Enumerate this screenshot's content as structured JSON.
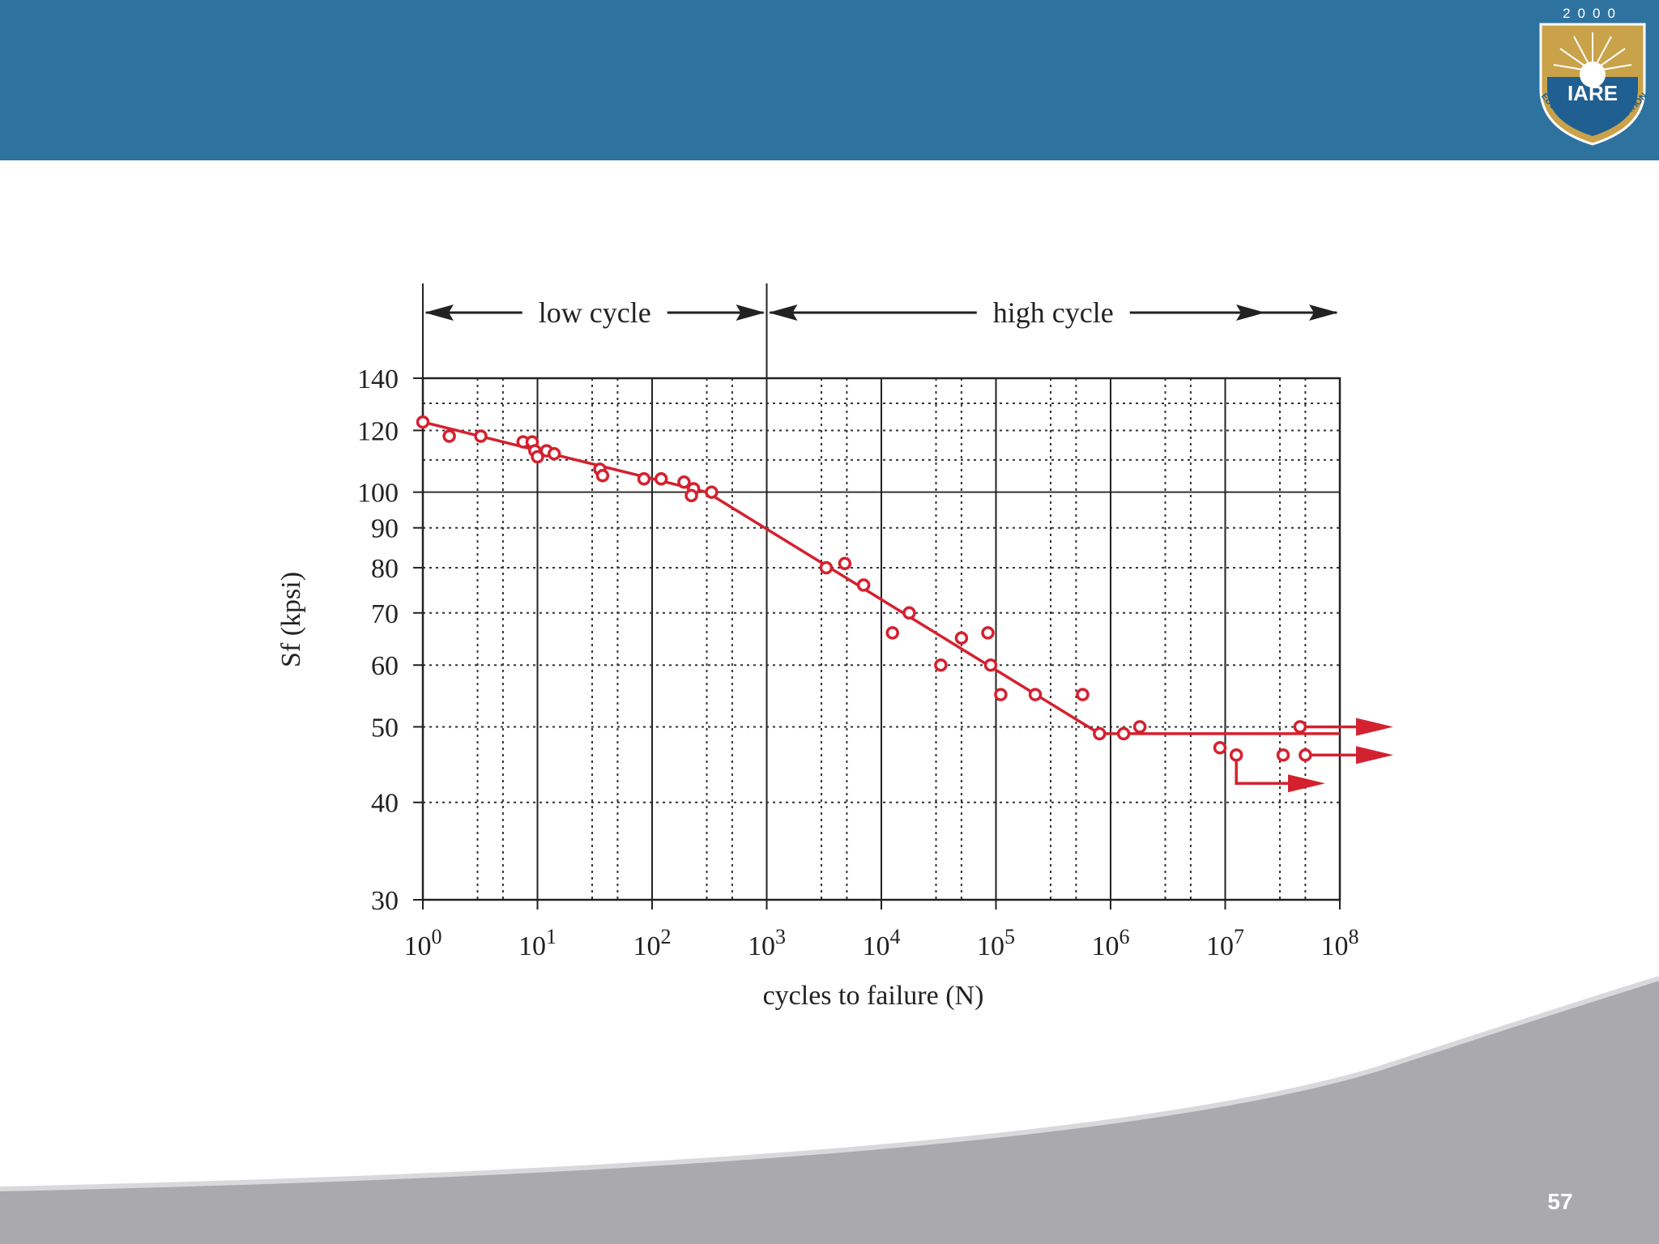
{
  "slide": {
    "number": "57"
  },
  "logo": {
    "year": "2000",
    "name": "IARE",
    "motto": "EDUCATION FOR LIBERATION"
  },
  "colors": {
    "header": "#2e72a0",
    "data": "#d4212f",
    "footer": "#a9a9ae"
  },
  "chart_data": {
    "type": "scatter",
    "x_scale": "log",
    "y_scale": "log",
    "xlim": [
      1,
      100000000
    ],
    "ylim": [
      30,
      140
    ],
    "grid": true,
    "xlabel": "cycles to failure (N)",
    "ylabel": "Sf (kpsi)",
    "x_ticks": [
      {
        "value": 1,
        "base": "10",
        "exp": "0"
      },
      {
        "value": 10,
        "base": "10",
        "exp": "1"
      },
      {
        "value": 100,
        "base": "10",
        "exp": "2"
      },
      {
        "value": 1000,
        "base": "10",
        "exp": "3"
      },
      {
        "value": 10000,
        "base": "10",
        "exp": "4"
      },
      {
        "value": 100000,
        "base": "10",
        "exp": "5"
      },
      {
        "value": 1000000,
        "base": "10",
        "exp": "6"
      },
      {
        "value": 10000000,
        "base": "10",
        "exp": "7"
      },
      {
        "value": 100000000,
        "base": "10",
        "exp": "8"
      }
    ],
    "y_ticks": [
      30,
      40,
      50,
      60,
      70,
      80,
      90,
      100,
      120,
      140
    ],
    "regions": [
      {
        "label": "low cycle",
        "from": 1,
        "to": 1000
      },
      {
        "label": "high cycle",
        "from": 1000,
        "to": 100000000
      }
    ],
    "fit_line": [
      {
        "x": 1,
        "y": 123
      },
      {
        "x": 300,
        "y": 100
      },
      {
        "x": 800000,
        "y": 49
      },
      {
        "x": 100000000,
        "y": 49
      }
    ],
    "points": [
      {
        "x": 1,
        "y": 123
      },
      {
        "x": 1.7,
        "y": 118
      },
      {
        "x": 3.2,
        "y": 118
      },
      {
        "x": 7.5,
        "y": 116
      },
      {
        "x": 9,
        "y": 116
      },
      {
        "x": 9.5,
        "y": 113
      },
      {
        "x": 10,
        "y": 111
      },
      {
        "x": 12,
        "y": 113
      },
      {
        "x": 14,
        "y": 112
      },
      {
        "x": 35,
        "y": 107
      },
      {
        "x": 37,
        "y": 105
      },
      {
        "x": 85,
        "y": 104
      },
      {
        "x": 120,
        "y": 104
      },
      {
        "x": 190,
        "y": 103
      },
      {
        "x": 230,
        "y": 101
      },
      {
        "x": 220,
        "y": 99
      },
      {
        "x": 330,
        "y": 100
      },
      {
        "x": 3300,
        "y": 80
      },
      {
        "x": 4800,
        "y": 81
      },
      {
        "x": 7000,
        "y": 76
      },
      {
        "x": 12500,
        "y": 66
      },
      {
        "x": 17500,
        "y": 70
      },
      {
        "x": 33000,
        "y": 60
      },
      {
        "x": 50000,
        "y": 65
      },
      {
        "x": 85000,
        "y": 66
      },
      {
        "x": 90000,
        "y": 60
      },
      {
        "x": 110000,
        "y": 55
      },
      {
        "x": 220000,
        "y": 55
      },
      {
        "x": 570000,
        "y": 55
      },
      {
        "x": 800000,
        "y": 49
      },
      {
        "x": 1300000,
        "y": 49
      },
      {
        "x": 1800000,
        "y": 50
      },
      {
        "x": 9000000,
        "y": 47
      },
      {
        "x": 12500000,
        "y": 46
      },
      {
        "x": 32000000,
        "y": 46
      },
      {
        "x": 45000000,
        "y": 50
      },
      {
        "x": 50000000,
        "y": 46
      }
    ],
    "runouts": [
      {
        "x": 45000000,
        "y": 50
      },
      {
        "x": 50000000,
        "y": 46
      },
      {
        "x": 12500000,
        "y": 46
      }
    ]
  }
}
